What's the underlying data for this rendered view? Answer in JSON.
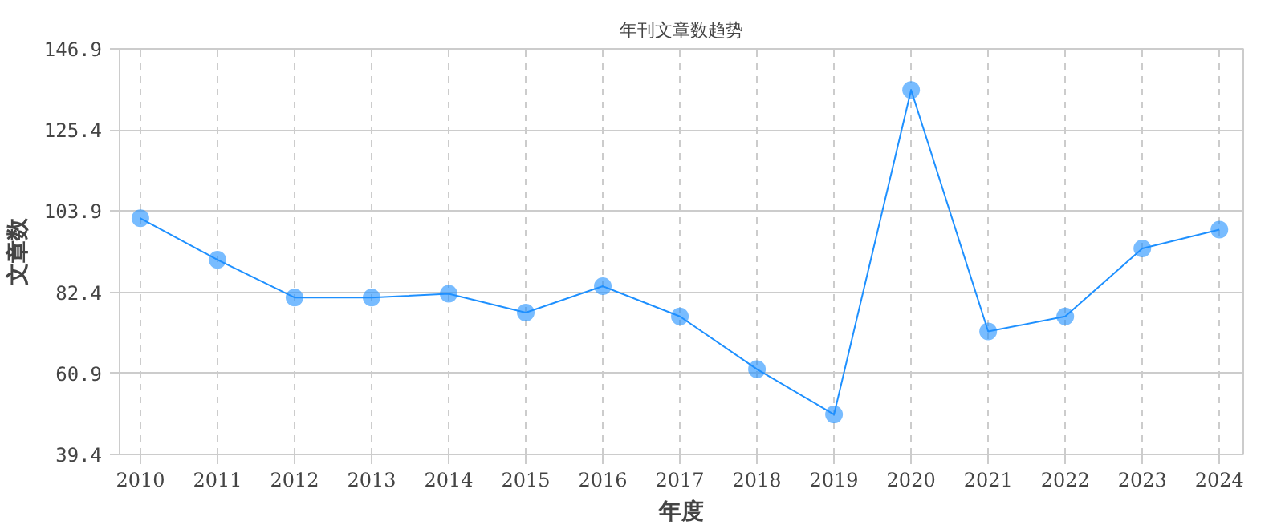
{
  "chart_data": {
    "type": "line",
    "title": "年刊文章数趋势",
    "xlabel": "年度",
    "ylabel": "文章数",
    "categories": [
      "2010",
      "2011",
      "2012",
      "2013",
      "2014",
      "2015",
      "2016",
      "2017",
      "2018",
      "2019",
      "2020",
      "2021",
      "2022",
      "2023",
      "2024"
    ],
    "series": [
      {
        "color": "#1e90ff",
        "values": [
          102,
          91,
          81,
          81,
          82,
          77,
          84,
          76,
          62,
          50,
          136,
          72,
          76,
          94,
          99
        ]
      }
    ],
    "ylim": [
      39.4,
      146.9
    ],
    "yticks": [
      39.4,
      60.9,
      82.4,
      103.9,
      125.4,
      146.9
    ],
    "grid": true,
    "marker": "circle",
    "line_style": "solid"
  }
}
